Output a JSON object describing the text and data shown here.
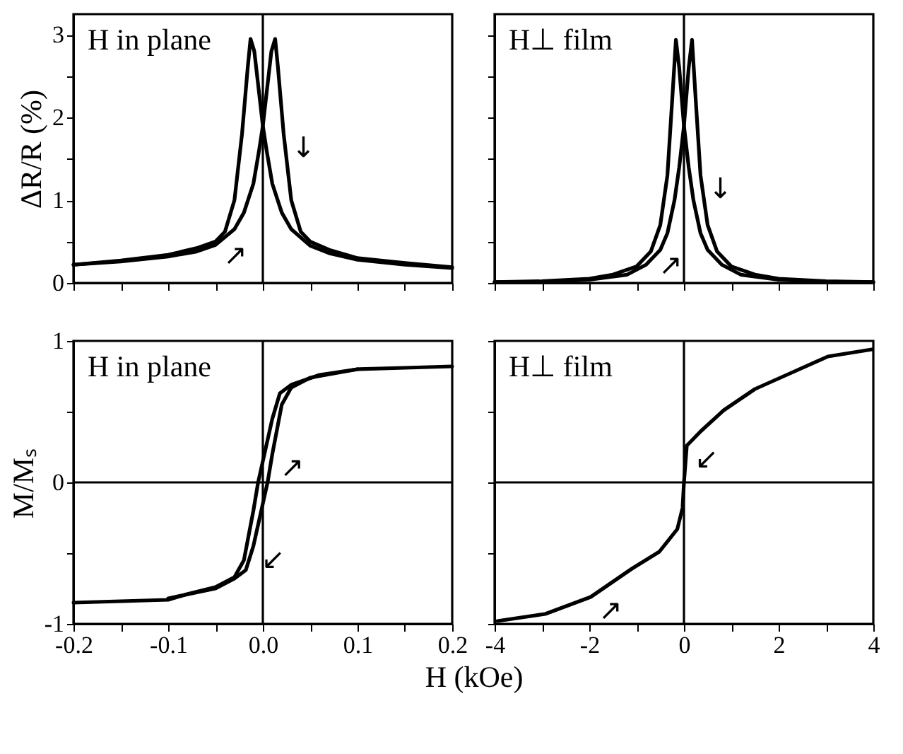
{
  "chart_data": [
    {
      "type": "line",
      "ylabel": "ΔR/R (%)",
      "xlim": [
        -0.2,
        0.2
      ],
      "ylim": [
        0,
        3.25
      ],
      "tick_labels": "y",
      "xticks": [
        {
          "value": -0.2,
          "label": null
        },
        {
          "value": -0.15,
          "label": null
        },
        {
          "value": -0.1,
          "label": null
        },
        {
          "value": -0.05,
          "label": null
        },
        {
          "value": 0,
          "label": null
        },
        {
          "value": 0.05,
          "label": null
        },
        {
          "value": 0.1,
          "label": null
        },
        {
          "value": 0.15,
          "label": null
        },
        {
          "value": 0.2,
          "label": null
        }
      ],
      "yticks": [
        0,
        {
          "value": 0.5,
          "label": null
        },
        1,
        {
          "value": 1.5,
          "label": null
        },
        2,
        {
          "value": 2.5,
          "label": null
        },
        3
      ],
      "series": [
        {
          "color": "#000000",
          "x": [
            -0.2,
            -0.15,
            -0.1,
            -0.07,
            -0.05,
            -0.04,
            -0.03,
            -0.022,
            -0.016,
            -0.013,
            -0.009,
            -0.004,
            0.0,
            0.004,
            0.01,
            0.02,
            0.03,
            0.05,
            0.07,
            0.1,
            0.15,
            0.2
          ],
          "values": [
            0.22,
            0.27,
            0.34,
            0.42,
            0.5,
            0.62,
            1.0,
            1.8,
            2.6,
            2.95,
            2.8,
            2.3,
            1.9,
            1.6,
            1.2,
            0.85,
            0.65,
            0.45,
            0.36,
            0.28,
            0.22,
            0.18
          ]
        },
        {
          "color": "#000000",
          "x": [
            -0.2,
            -0.15,
            -0.1,
            -0.07,
            -0.05,
            -0.03,
            -0.02,
            -0.01,
            -0.004,
            0.0,
            0.004,
            0.009,
            0.013,
            0.016,
            0.022,
            0.03,
            0.04,
            0.05,
            0.07,
            0.1,
            0.15,
            0.2
          ],
          "values": [
            0.22,
            0.26,
            0.32,
            0.38,
            0.46,
            0.65,
            0.85,
            1.2,
            1.6,
            1.9,
            2.3,
            2.8,
            2.95,
            2.6,
            1.8,
            1.0,
            0.62,
            0.5,
            0.4,
            0.3,
            0.24,
            0.19
          ]
        }
      ],
      "ref_lines": [
        {
          "axis": "x",
          "value": 0,
          "color": "#000000"
        }
      ],
      "annotations": [
        "H in plane",
        {
          "text": "↓",
          "x": 0.022,
          "y": 1.8
        },
        {
          "text": "↗",
          "x": -0.05,
          "y": 0.5
        }
      ]
    },
    {
      "type": "line",
      "xlim": [
        -4,
        4
      ],
      "ylim": [
        0,
        3.25
      ],
      "tick_labels": false,
      "xticks": [
        {
          "value": -4,
          "label": null
        },
        {
          "value": -3,
          "label": null
        },
        {
          "value": -2,
          "label": null
        },
        {
          "value": -1,
          "label": null
        },
        {
          "value": 0,
          "label": null
        },
        {
          "value": 1,
          "label": null
        },
        {
          "value": 2,
          "label": null
        },
        {
          "value": 3,
          "label": null
        },
        {
          "value": 4,
          "label": null
        }
      ],
      "yticks": [
        {
          "value": 0,
          "label": null
        },
        {
          "value": 0.5,
          "label": null
        },
        {
          "value": 1,
          "label": null
        },
        {
          "value": 1.5,
          "label": null
        },
        {
          "value": 2,
          "label": null
        },
        {
          "value": 2.5,
          "label": null
        },
        {
          "value": 3,
          "label": null
        }
      ],
      "series": [
        {
          "color": "#000000",
          "x": [
            -4,
            -3,
            -2,
            -1.5,
            -1,
            -0.7,
            -0.5,
            -0.35,
            -0.25,
            -0.17,
            -0.1,
            0,
            0.1,
            0.2,
            0.35,
            0.5,
            0.8,
            1.2,
            2,
            3,
            4
          ],
          "values": [
            0.01,
            0.02,
            0.05,
            0.1,
            0.2,
            0.38,
            0.7,
            1.3,
            2.2,
            2.94,
            2.6,
            1.9,
            1.4,
            1.0,
            0.6,
            0.4,
            0.22,
            0.1,
            0.04,
            0.01,
            0.01
          ]
        },
        {
          "color": "#000000",
          "x": [
            -4,
            -3,
            -2,
            -1.2,
            -0.8,
            -0.5,
            -0.35,
            -0.2,
            -0.1,
            0,
            0.1,
            0.17,
            0.25,
            0.35,
            0.5,
            0.7,
            1,
            1.5,
            2,
            3,
            4
          ],
          "values": [
            0.01,
            0.01,
            0.04,
            0.1,
            0.22,
            0.4,
            0.6,
            1.0,
            1.4,
            1.9,
            2.6,
            2.94,
            2.2,
            1.3,
            0.7,
            0.38,
            0.2,
            0.1,
            0.05,
            0.02,
            0.01
          ]
        }
      ],
      "ref_lines": [
        {
          "axis": "x",
          "value": 0,
          "color": "#000000"
        }
      ],
      "annotations": [
        "H⊥ film",
        {
          "text": "↓",
          "x": 0.35,
          "y": 1.3
        },
        {
          "text": "↗",
          "x": -0.7,
          "y": 0.38
        }
      ]
    },
    {
      "type": "line",
      "ylabel": "M/Mₛ",
      "xlabel": "H (kOe)",
      "xlim": [
        -0.2,
        0.2
      ],
      "ylim": [
        -1,
        1
      ],
      "xticks": [
        {
          "value": -0.2,
          "label": "-0.2"
        },
        {
          "value": -0.15,
          "label": null
        },
        {
          "value": -0.1,
          "label": "-0.1"
        },
        {
          "value": -0.05,
          "label": null
        },
        {
          "value": 0,
          "label": "0.0"
        },
        {
          "value": 0.05,
          "label": null
        },
        {
          "value": 0.1,
          "label": "0.1"
        },
        {
          "value": 0.15,
          "label": null
        },
        {
          "value": 0.2,
          "label": "0.2"
        }
      ],
      "yticks": [
        -1,
        {
          "value": -0.5,
          "label": null
        },
        0,
        {
          "value": 0.5,
          "label": null
        },
        1
      ],
      "series": [
        {
          "color": "#000000",
          "x": [
            0.2,
            0.15,
            0.1,
            0.06,
            0.03,
            0.018,
            0.01,
            0.0,
            -0.005,
            -0.01,
            -0.02,
            -0.03,
            -0.05,
            -0.08,
            -0.1,
            -0.15,
            -0.2
          ],
          "values": [
            0.82,
            0.81,
            0.8,
            0.76,
            0.69,
            0.63,
            0.45,
            0.15,
            0.0,
            -0.2,
            -0.55,
            -0.67,
            -0.74,
            -0.79,
            -0.83,
            -0.84,
            -0.85
          ]
        },
        {
          "color": "#000000",
          "x": [
            -0.1,
            -0.05,
            -0.03,
            -0.018,
            -0.01,
            0.0,
            0.005,
            0.01,
            0.02,
            0.03,
            0.05,
            0.1
          ],
          "values": [
            -0.82,
            -0.75,
            -0.68,
            -0.62,
            -0.45,
            -0.15,
            0.0,
            0.2,
            0.55,
            0.67,
            0.74,
            0.8
          ]
        }
      ],
      "ref_lines": [
        {
          "axis": "x",
          "value": 0,
          "color": "#000000"
        },
        {
          "axis": "y",
          "value": 0,
          "color": "#000000"
        }
      ],
      "annotations": [
        "H in plane",
        {
          "text": "↗",
          "x": 0.01,
          "y": 0.2
        },
        {
          "text": "↙",
          "x": -0.01,
          "y": -0.45
        }
      ]
    },
    {
      "type": "line",
      "xlim": [
        -4,
        4
      ],
      "ylim": [
        -1,
        1
      ],
      "tick_labels": "x",
      "xticks": [
        -4,
        {
          "value": -3,
          "label": null
        },
        -2,
        {
          "value": -1,
          "label": null
        },
        0,
        {
          "value": 1,
          "label": null
        },
        2,
        {
          "value": 3,
          "label": null
        },
        4
      ],
      "yticks": [
        {
          "value": -1,
          "label": null
        },
        {
          "value": -0.5,
          "label": null
        },
        {
          "value": 0,
          "label": null
        },
        {
          "value": 0.5,
          "label": null
        },
        {
          "value": 1,
          "label": null
        }
      ],
      "series": [
        {
          "color": "#000000",
          "x": [
            -3.94,
            -2.93,
            -1.97,
            -1.1,
            -0.52,
            -0.14,
            -0.03,
            0,
            0.06,
            0.35,
            0.84,
            1.5,
            2.17,
            3.04,
            3.97
          ],
          "values": [
            -0.98,
            -0.93,
            -0.81,
            -0.61,
            -0.49,
            -0.33,
            -0.18,
            0,
            0.26,
            0.36,
            0.51,
            0.66,
            0.76,
            0.89,
            0.94
          ]
        }
      ],
      "ref_lines": [
        {
          "axis": "x",
          "value": 0,
          "color": "#000000"
        },
        {
          "axis": "y",
          "value": 0,
          "color": "#000000"
        }
      ],
      "annotations": [
        "H⊥ film",
        {
          "text": "↙",
          "x": 0.06,
          "y": 0.26
        },
        {
          "text": "↗",
          "x": -1.97,
          "y": -0.81
        }
      ]
    }
  ]
}
